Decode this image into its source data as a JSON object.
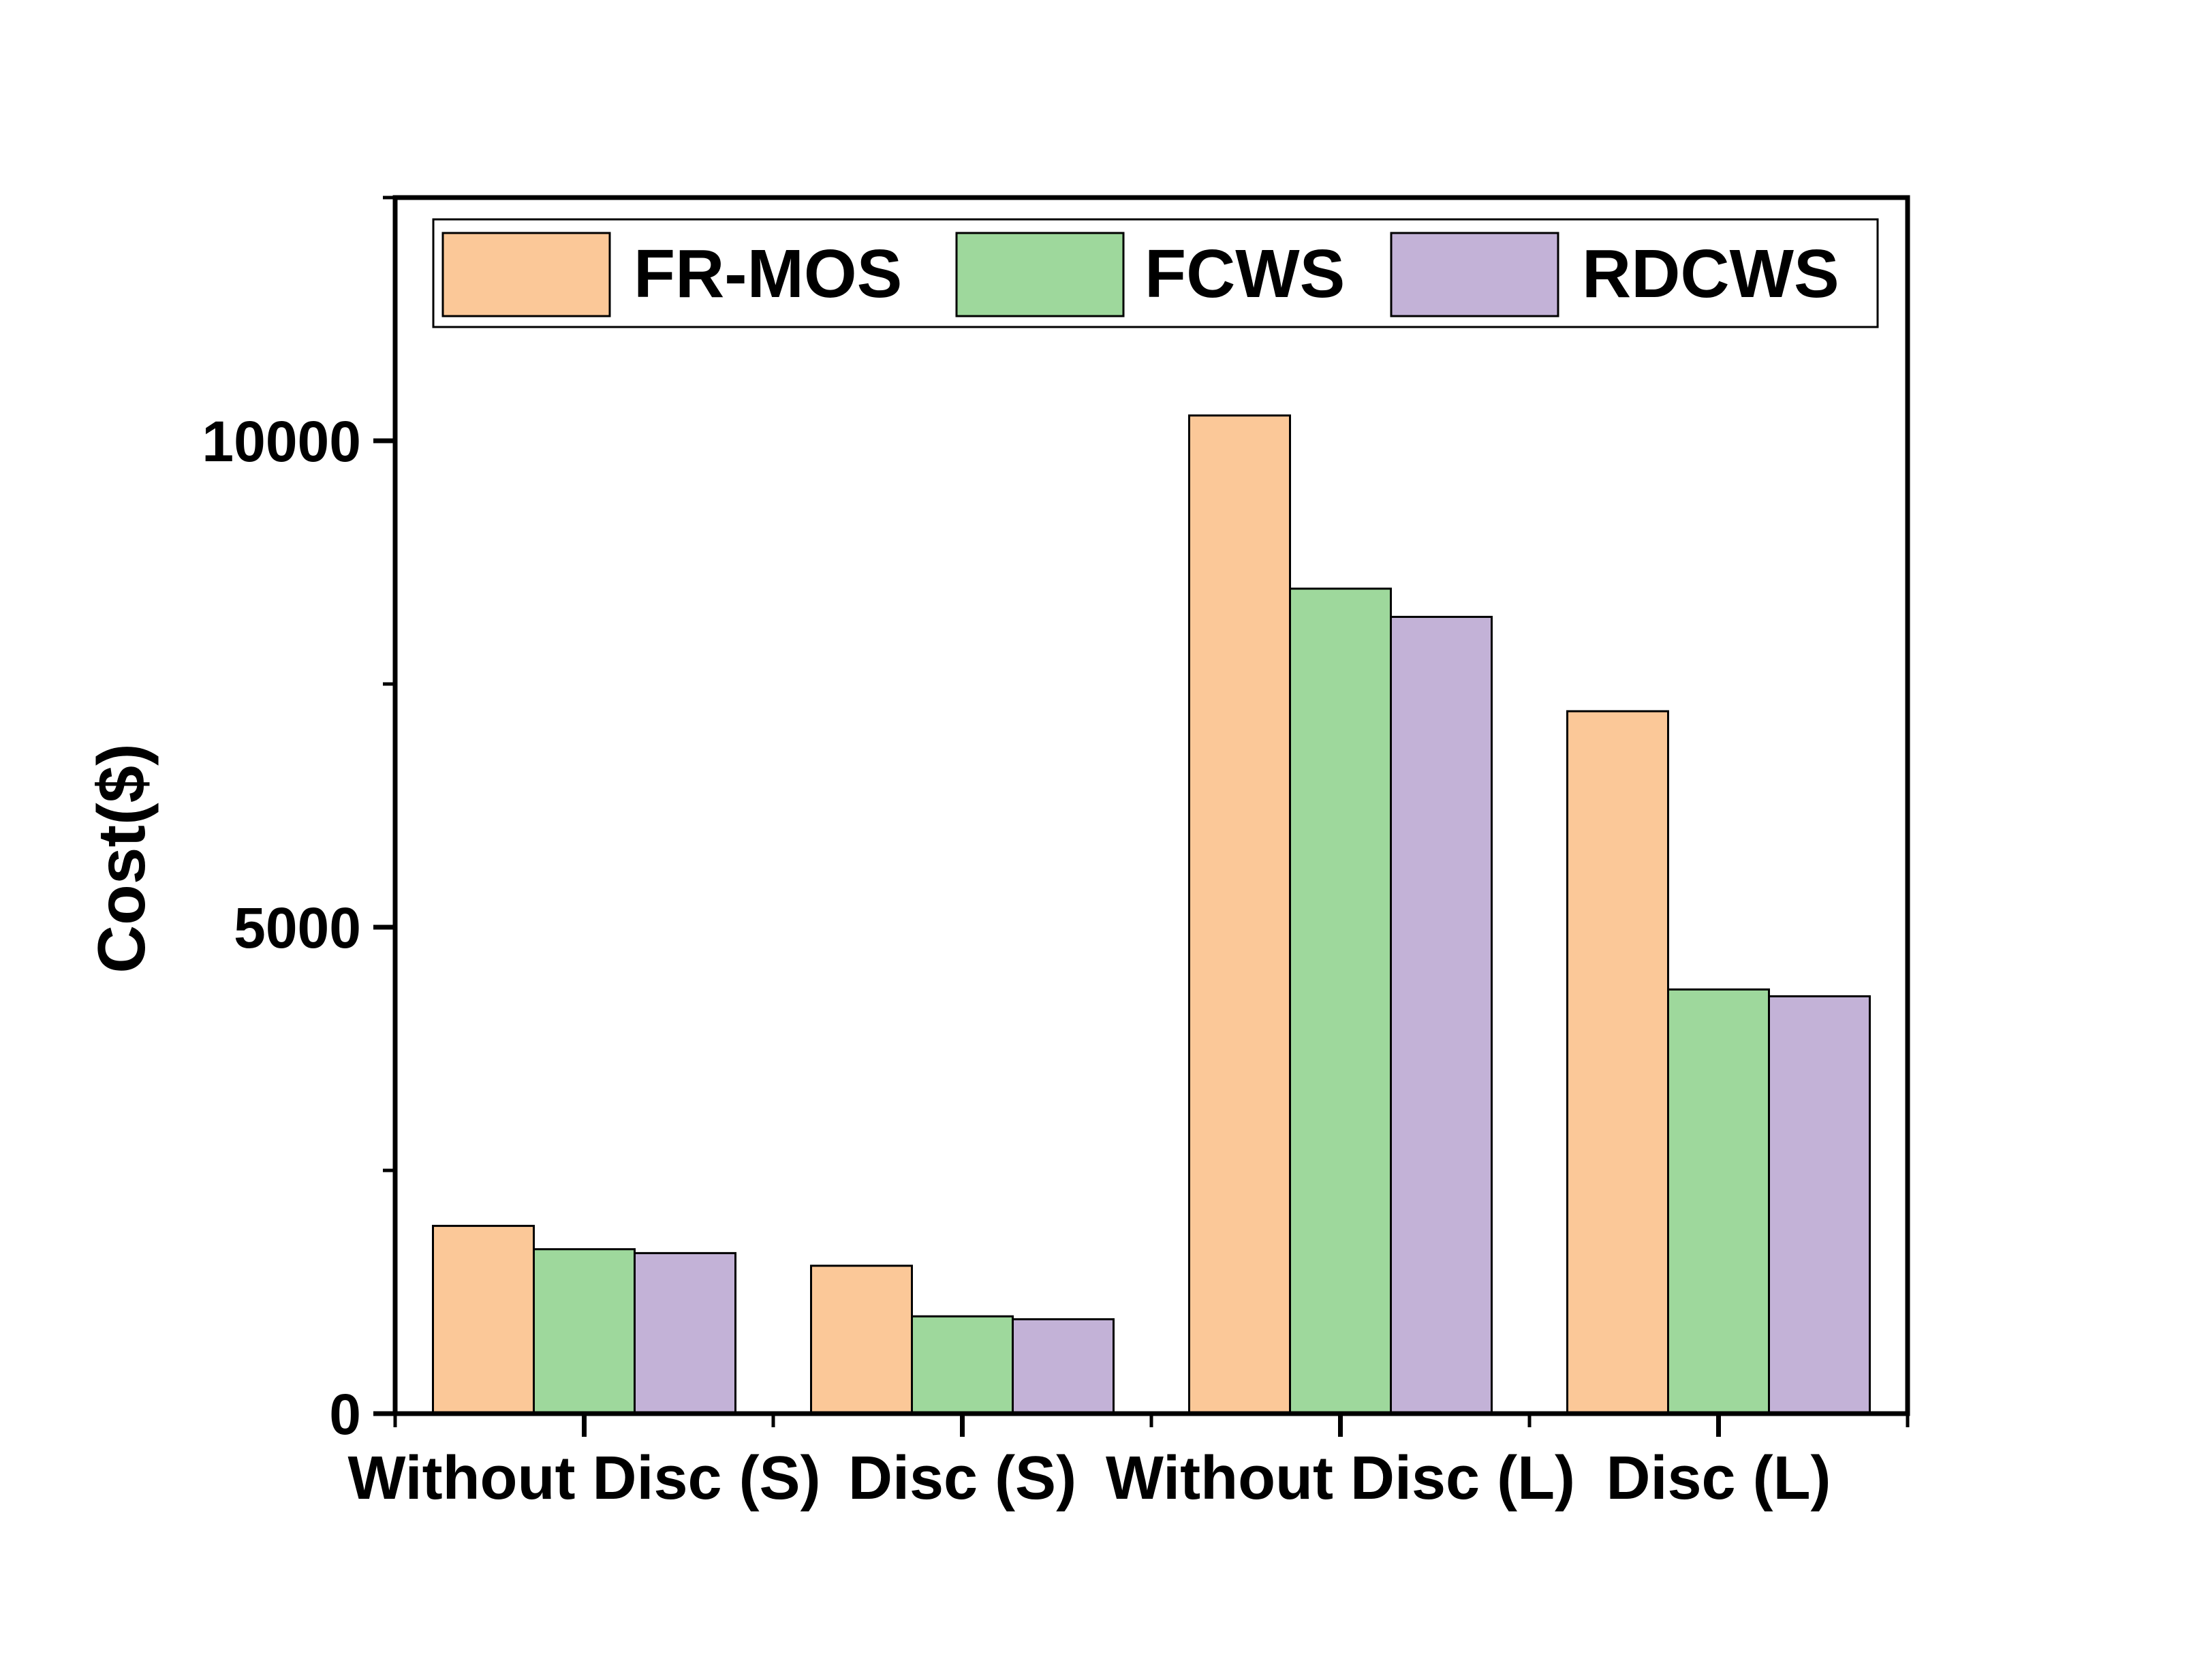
{
  "chart_data": {
    "type": "bar",
    "title": "",
    "xlabel": "",
    "ylabel": "Cost($)",
    "ylim": [
      0,
      12500
    ],
    "yticks": [
      {
        "value": 0,
        "label": "0"
      },
      {
        "value": 5000,
        "label": "5000"
      },
      {
        "value": 10000,
        "label": "10000"
      }
    ],
    "minor_yticks": [
      2500,
      7500,
      12500
    ],
    "grid": false,
    "legend_position": "top",
    "categories": [
      "Without Disc (S)",
      "Disc (S)",
      "Without Disc (L)",
      "Disc (L)"
    ],
    "series": [
      {
        "name": "FR-MOS",
        "color": "#FBC898",
        "values": [
          1930,
          1520,
          10260,
          7220
        ]
      },
      {
        "name": "FCWS",
        "color": "#9ED89C",
        "values": [
          1690,
          1000,
          8480,
          4360
        ]
      },
      {
        "name": "RDCWS",
        "color": "#C3B2D7",
        "values": [
          1650,
          970,
          8190,
          4290
        ]
      }
    ]
  }
}
